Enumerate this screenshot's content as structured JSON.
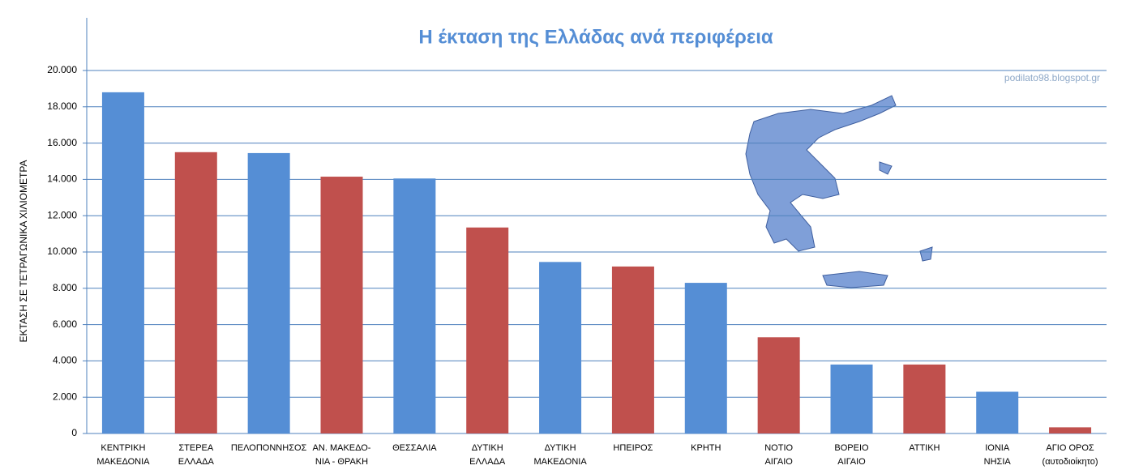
{
  "chart_data": {
    "type": "bar",
    "title": "Η έκταση της Ελλάδας ανά περιφέρεια",
    "watermark": "podilato98.blogspot.gr",
    "ylabel": "ΕΚΤΑΣΗ ΣΕ ΤΕΤΡΑΓΩΝΙΚΑ ΧΙΛΙΟΜΕΤΡΑ",
    "categories": [
      [
        "ΚΕΝΤΡΙΚΗ",
        "ΜΑΚΕΔΟΝΙΑ"
      ],
      [
        "ΣΤΕΡΕΑ",
        "ΕΛΛΑΔΑ"
      ],
      [
        "ΠΕΛΟΠΟΝΝΗΣΟΣ"
      ],
      [
        "ΑΝ. ΜΑΚΕΔΟ-",
        "ΝΙΑ - ΘΡΑΚΗ"
      ],
      [
        "ΘΕΣΣΑΛΙΑ"
      ],
      [
        "ΔΥΤΙΚΗ",
        "ΕΛΛΑΔΑ"
      ],
      [
        "ΔΥΤΙΚΗ",
        "ΜΑΚΕΔΟΝΙΑ"
      ],
      [
        "ΗΠΕΙΡΟΣ"
      ],
      [
        "ΚΡΗΤΗ"
      ],
      [
        "ΝΟΤΙΟ",
        "ΑΙΓΑΙΟ"
      ],
      [
        "ΒΟΡΕΙΟ",
        "ΑΙΓΑΙΟ"
      ],
      [
        "ΑΤΤΙΚΗ"
      ],
      [
        "ΙΟΝΙΑ",
        "ΝΗΣΙΑ"
      ],
      [
        "ΑΓΙΟ ΟΡΟΣ",
        "(αυτοδιοίκητο)"
      ]
    ],
    "values": [
      18800,
      15500,
      15450,
      14150,
      14050,
      11350,
      9450,
      9200,
      8300,
      5300,
      3800,
      3800,
      2300,
      340
    ],
    "colors": [
      "#558ed5",
      "#c0504d",
      "#558ed5",
      "#c0504d",
      "#558ed5",
      "#c0504d",
      "#558ed5",
      "#c0504d",
      "#558ed5",
      "#c0504d",
      "#558ed5",
      "#c0504d",
      "#558ed5",
      "#c0504d"
    ],
    "ylim": [
      0,
      20000
    ],
    "yticks": [
      0,
      {
        "value": 2000,
        "label": "2.000"
      },
      {
        "value": 4000,
        "label": "4.000"
      },
      {
        "value": 6000,
        "label": "6.000"
      },
      {
        "value": 8000,
        "label": "8.000"
      },
      {
        "value": 10000,
        "label": "10.000"
      },
      {
        "value": 12000,
        "label": "12.000"
      },
      {
        "value": 14000,
        "label": "14.000"
      },
      {
        "value": 16000,
        "label": "16.000"
      },
      {
        "value": 18000,
        "label": "18.000"
      },
      {
        "value": 20000,
        "label": "20.000"
      }
    ],
    "grid": true
  }
}
